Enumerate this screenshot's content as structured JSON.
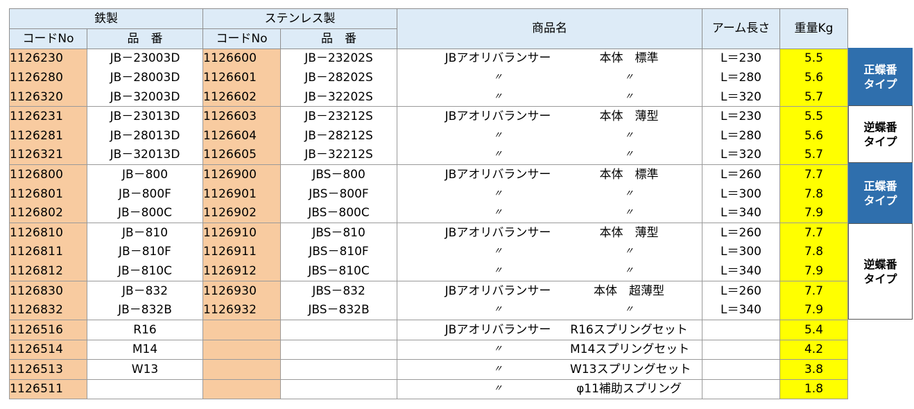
{
  "header": {
    "group_iron": "鉄製",
    "group_stainless": "ステンレス製",
    "code_no": "コードNo",
    "part_no": "品　番",
    "product_name": "商品名",
    "arm_length": "アーム長さ",
    "weight": "重量Kg"
  },
  "rows": [
    {
      "iron_code": "1126230",
      "iron_part": "JB－23003D",
      "sus_code": "1126600",
      "sus_part": "JB－23202S",
      "name_left": "JBアオリバランサー",
      "name_right": "本体　標準",
      "arm": "L＝230",
      "weight": "5.5"
    },
    {
      "iron_code": "1126280",
      "iron_part": "JB－28003D",
      "sus_code": "1126601",
      "sus_part": "JB－28202S",
      "name_left": "〃",
      "name_right": "〃",
      "arm": "L＝280",
      "weight": "5.6"
    },
    {
      "iron_code": "1126320",
      "iron_part": "JB－32003D",
      "sus_code": "1126602",
      "sus_part": "JB－32202S",
      "name_left": "〃",
      "name_right": "〃",
      "arm": "L＝320",
      "weight": "5.7"
    },
    {
      "iron_code": "1126231",
      "iron_part": "JB－23013D",
      "sus_code": "1126603",
      "sus_part": "JB－23212S",
      "name_left": "JBアオリバランサー",
      "name_right": "本体　薄型",
      "arm": "L＝230",
      "weight": "5.5"
    },
    {
      "iron_code": "1126281",
      "iron_part": "JB－28013D",
      "sus_code": "1126604",
      "sus_part": "JB－28212S",
      "name_left": "〃",
      "name_right": "〃",
      "arm": "L＝280",
      "weight": "5.6"
    },
    {
      "iron_code": "1126321",
      "iron_part": "JB－32013D",
      "sus_code": "1126605",
      "sus_part": "JB－32212S",
      "name_left": "〃",
      "name_right": "〃",
      "arm": "L＝320",
      "weight": "5.7"
    },
    {
      "iron_code": "1126800",
      "iron_part": "JB－800",
      "sus_code": "1126900",
      "sus_part": "JBS－800",
      "name_left": "JBアオリバランサー",
      "name_right": "本体　標準",
      "arm": "L＝260",
      "weight": "7.7"
    },
    {
      "iron_code": "1126801",
      "iron_part": "JB－800F",
      "sus_code": "1126901",
      "sus_part": "JBS－800F",
      "name_left": "〃",
      "name_right": "〃",
      "arm": "L＝300",
      "weight": "7.8"
    },
    {
      "iron_code": "1126802",
      "iron_part": "JB－800C",
      "sus_code": "1126902",
      "sus_part": "JBS－800C",
      "name_left": "〃",
      "name_right": "〃",
      "arm": "L＝340",
      "weight": "7.9"
    },
    {
      "iron_code": "1126810",
      "iron_part": "JB－810",
      "sus_code": "1126910",
      "sus_part": "JBS－810",
      "name_left": "JBアオリバランサー",
      "name_right": "本体　薄型",
      "arm": "L＝260",
      "weight": "7.7"
    },
    {
      "iron_code": "1126811",
      "iron_part": "JB－810F",
      "sus_code": "1126911",
      "sus_part": "JBS－810F",
      "name_left": "〃",
      "name_right": "〃",
      "arm": "L＝300",
      "weight": "7.8"
    },
    {
      "iron_code": "1126812",
      "iron_part": "JB－810C",
      "sus_code": "1126912",
      "sus_part": "JBS－810C",
      "name_left": "〃",
      "name_right": "〃",
      "arm": "L＝340",
      "weight": "7.9"
    },
    {
      "iron_code": "1126830",
      "iron_part": "JB－832",
      "sus_code": "1126930",
      "sus_part": "JBS－832",
      "name_left": "JBアオリバランサー",
      "name_right": "本体　超薄型",
      "arm": "L＝260",
      "weight": "7.7"
    },
    {
      "iron_code": "1126832",
      "iron_part": "JB－832B",
      "sus_code": "1126932",
      "sus_part": "JBS－832B",
      "name_left": "〃",
      "name_right": "〃",
      "arm": "L＝340",
      "weight": "7.9"
    },
    {
      "iron_code": "1126516",
      "iron_part": "R16",
      "sus_code": "",
      "sus_part": "",
      "name_left": "JBアオリバランサー",
      "name_right": "R16スプリングセット",
      "arm": "",
      "weight": "5.4"
    },
    {
      "iron_code": "1126514",
      "iron_part": "M14",
      "sus_code": "",
      "sus_part": "",
      "name_left": "〃",
      "name_right": "M14スプリングセット",
      "arm": "",
      "weight": "4.2"
    },
    {
      "iron_code": "1126513",
      "iron_part": "W13",
      "sus_code": "",
      "sus_part": "",
      "name_left": "〃",
      "name_right": "W13スプリングセット",
      "arm": "",
      "weight": "3.8"
    },
    {
      "iron_code": "1126511",
      "iron_part": "",
      "sus_code": "",
      "sus_part": "",
      "name_left": "〃",
      "name_right": "φ11補助スプリング",
      "arm": "",
      "weight": "1.8"
    }
  ],
  "type_labels": [
    {
      "text": "正蝶番\nタイプ",
      "style": "blue"
    },
    {
      "text": "逆蝶番\nタイプ",
      "style": "white"
    },
    {
      "text": "正蝶番\nタイプ",
      "style": "blue"
    },
    {
      "text": "逆蝶番\nタイプ",
      "style": "white"
    }
  ],
  "colors": {
    "code_bg": "#f8cba0",
    "weight_bg": "#ffff00",
    "header_bg": "#ddebf7",
    "type_blue": "#2f6fad"
  }
}
